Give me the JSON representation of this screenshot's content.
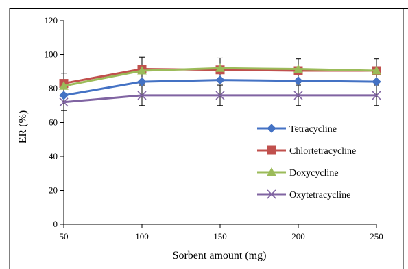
{
  "chart_data": {
    "type": "line",
    "title": "",
    "xlabel": "Sorbent amount (mg)",
    "ylabel": "ER (%)",
    "x": [
      50,
      100,
      150,
      200,
      250
    ],
    "xlim": [
      50,
      250
    ],
    "ylim": [
      0,
      120
    ],
    "x_ticks": [
      "50",
      "100",
      "150",
      "200",
      "250"
    ],
    "y_ticks": [
      "0",
      "20",
      "40",
      "60",
      "80",
      "100",
      "120"
    ],
    "grid": false,
    "legend_position": "center-right",
    "series": [
      {
        "name": "Tetracycline",
        "values": [
          76,
          84,
          85,
          84.5,
          84
        ],
        "error": [
          0,
          0,
          0,
          0,
          0
        ],
        "color": "#4472C4",
        "marker": "diamond"
      },
      {
        "name": "Chlortetracycline",
        "values": [
          83,
          91.5,
          91,
          90.5,
          90.5
        ],
        "error": [
          6,
          7,
          7,
          7,
          7
        ],
        "color": "#C0504D",
        "marker": "square"
      },
      {
        "name": "Doxycycline",
        "values": [
          81.5,
          90.5,
          92,
          91.5,
          90.5
        ],
        "error": [
          0,
          0,
          0,
          0,
          0
        ],
        "color": "#9BBB59",
        "marker": "triangle"
      },
      {
        "name": "Oxytetracycline",
        "values": [
          72,
          76,
          76,
          76,
          76
        ],
        "error": [
          5,
          6,
          6,
          6,
          6
        ],
        "color": "#8064A2",
        "marker": "x"
      }
    ]
  }
}
